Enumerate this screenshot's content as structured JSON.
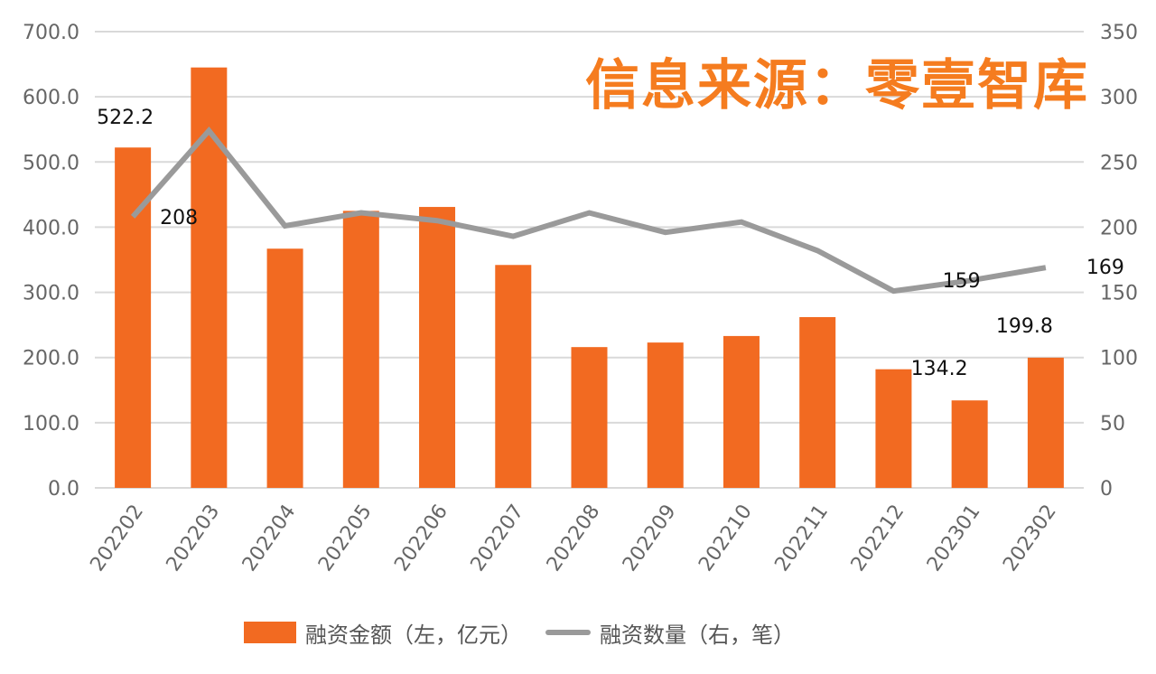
{
  "chart_data": {
    "type": "bar+line",
    "title": "",
    "watermark": "信息来源：零壹智库",
    "categories": [
      "202202",
      "202203",
      "202204",
      "202205",
      "202206",
      "202207",
      "202208",
      "202209",
      "202210",
      "202211",
      "202212",
      "202301",
      "202302"
    ],
    "series": [
      {
        "name": "融资金额（左，亿元）",
        "type": "bar",
        "axis": "left",
        "color": "#f26a21",
        "values": [
          522.2,
          645,
          367,
          425,
          431,
          342,
          216,
          223,
          233,
          262,
          182,
          134.2,
          199.8
        ]
      },
      {
        "name": "融资数量（右，笔）",
        "type": "line",
        "axis": "right",
        "color": "#9a9a9a",
        "values": [
          208,
          274,
          201,
          211,
          205,
          193,
          211,
          196,
          204,
          182,
          151,
          159,
          169
        ]
      }
    ],
    "data_labels": [
      {
        "series": 0,
        "index": 0,
        "text": "522.2"
      },
      {
        "series": 1,
        "index": 0,
        "text": "208"
      },
      {
        "series": 1,
        "index": 11,
        "text": "159"
      },
      {
        "series": 1,
        "index": 12,
        "text": "169"
      },
      {
        "series": 0,
        "index": 11,
        "text": "134.2"
      },
      {
        "series": 0,
        "index": 12,
        "text": "199.8"
      }
    ],
    "left_axis": {
      "ticks": [
        "0.0",
        "100.0",
        "200.0",
        "300.0",
        "400.0",
        "500.0",
        "600.0",
        "700.0"
      ],
      "ylim": [
        0,
        700
      ]
    },
    "right_axis": {
      "ticks": [
        "0",
        "50",
        "100",
        "150",
        "200",
        "250",
        "300",
        "350"
      ],
      "ylim": [
        0,
        350
      ]
    },
    "xlabel": "",
    "ylabel": "",
    "grid": true,
    "legend_position": "bottom"
  },
  "legend": {
    "bar_label": "融资金额（左，亿元）",
    "line_label": "融资数量（右，笔）"
  }
}
